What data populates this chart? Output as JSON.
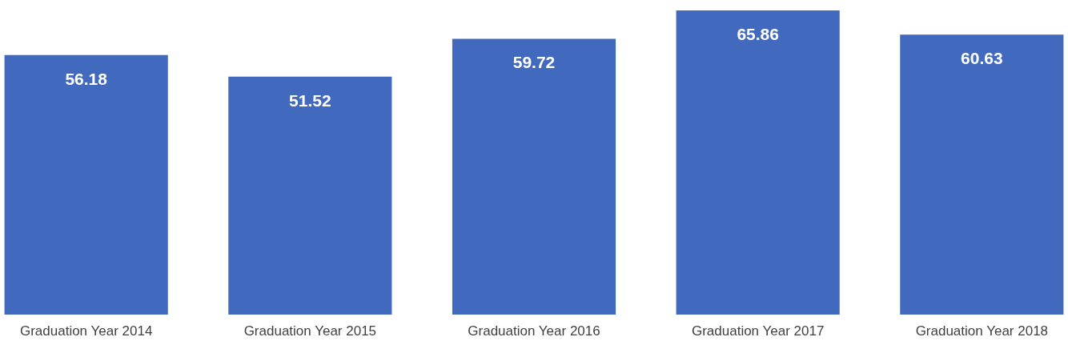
{
  "chart_data": {
    "type": "bar",
    "categories": [
      "Graduation Year 2014",
      "Graduation Year 2015",
      "Graduation Year 2016",
      "Graduation Year 2017",
      "Graduation Year 2018"
    ],
    "values": [
      56.18,
      51.52,
      59.72,
      65.86,
      60.63
    ],
    "color": "#4169bd",
    "data_labels": true,
    "grid": false
  }
}
